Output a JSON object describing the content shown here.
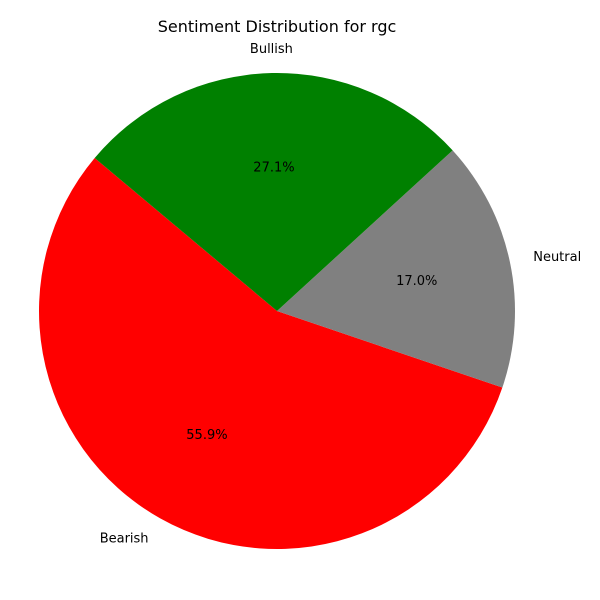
{
  "chart_data": {
    "type": "pie",
    "title": "Sentiment Distribution for rgc",
    "start_angle_deg": 140,
    "direction": "counterclockwise",
    "slices": [
      {
        "label": "Bearish",
        "value": 55.9,
        "pct_label": "55.9%",
        "color": "#ff0000"
      },
      {
        "label": "Neutral",
        "value": 17.0,
        "pct_label": "17.0%",
        "color": "#808080"
      },
      {
        "label": "Bullish",
        "value": 27.1,
        "pct_label": "27.1%",
        "color": "#008000"
      }
    ]
  }
}
